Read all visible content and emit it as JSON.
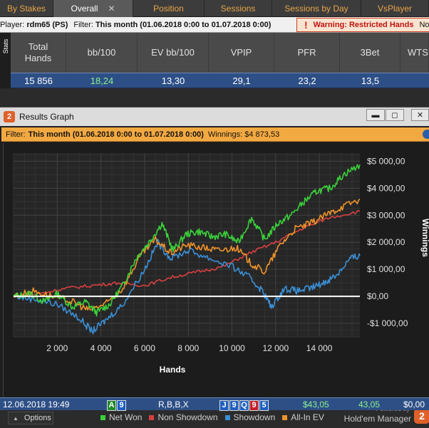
{
  "tabs": [
    {
      "label": "By Stakes",
      "active": false
    },
    {
      "label": "Overall",
      "active": true,
      "close": "✕"
    },
    {
      "label": "Position",
      "active": false
    },
    {
      "label": "Sessions",
      "active": false
    },
    {
      "label": "Sessions by Day",
      "active": false
    },
    {
      "label": "VsPlayer",
      "active": false
    }
  ],
  "filter_bar": {
    "player_label": "Player:",
    "player_value": "rdm65 (PS)",
    "filter_label": "Filter:",
    "filter_value": "This month (01.06.2018 0:00 to 01.07.2018 0:00)",
    "warning_icon": "!",
    "warning_text": "Warning: Restricted Hands",
    "warning_extra": "No C"
  },
  "stats_side_label": "Stats",
  "stats": {
    "headers": [
      "Total\nHands",
      "bb/100",
      "EV bb/100",
      "VPIP",
      "PFR",
      "3Bet",
      "WTSD"
    ],
    "values": [
      "15 856",
      "18,24",
      "13,30",
      "29,1",
      "23,2",
      "13,5",
      ""
    ]
  },
  "window": {
    "icon": "2",
    "title": "Results Graph",
    "buttons": [
      "▬",
      "◻",
      "✕"
    ]
  },
  "graph_filter": {
    "filter_label": "Filter:",
    "filter_value": "This month (01.06.2018 0:00 to 01.07.2018 0:00)",
    "winnings_label": "Winnings: $4 873,53"
  },
  "chart_data": {
    "type": "line",
    "xlabel": "Hands",
    "ylabel": "Winnings",
    "xlim": [
      0,
      15856
    ],
    "ylim": [
      -1500,
      5300
    ],
    "xticks": [
      2000,
      4000,
      6000,
      8000,
      10000,
      12000,
      14000
    ],
    "xtick_labels": [
      "2 000",
      "4 000",
      "6 000",
      "8 000",
      "10 000",
      "12 000",
      "14 000"
    ],
    "yticks": [
      -1000,
      0,
      1000,
      2000,
      3000,
      4000,
      5000
    ],
    "ytick_labels": [
      "-$1 000,00",
      "$0,00",
      "$1 000,00",
      "$2 000,00",
      "$3 000,00",
      "$4 000,00",
      "$5 000,00"
    ],
    "grid": true,
    "legend": "bottom",
    "series": [
      {
        "name": "Net Won",
        "color": "#3ad13a",
        "x": [
          0,
          800,
          1400,
          2000,
          2700,
          3300,
          3800,
          4400,
          5000,
          5600,
          6200,
          6800,
          7300,
          7900,
          8500,
          9100,
          9700,
          10300,
          10900,
          11500,
          12100,
          12700,
          13300,
          13900,
          14500,
          15100,
          15856
        ],
        "y": [
          0,
          100,
          -200,
          100,
          -400,
          -200,
          -600,
          -300,
          400,
          1400,
          2000,
          2700,
          1700,
          2300,
          2400,
          2200,
          2300,
          2000,
          2900,
          2100,
          2700,
          3000,
          3500,
          3900,
          4000,
          4500,
          4870
        ]
      },
      {
        "name": "Non Showdown",
        "color": "#d84040",
        "x": [
          0,
          1200,
          2400,
          3600,
          4800,
          6000,
          7200,
          8400,
          9600,
          10800,
          12000,
          13200,
          14400,
          15856
        ],
        "y": [
          0,
          100,
          300,
          400,
          500,
          400,
          700,
          900,
          1100,
          1600,
          2000,
          2500,
          2900,
          3150
        ]
      },
      {
        "name": "Showdown",
        "color": "#3a8fd6",
        "x": [
          0,
          1000,
          2000,
          3000,
          3600,
          4200,
          5000,
          6000,
          6600,
          7200,
          8000,
          9000,
          10000,
          10800,
          11400,
          11800,
          12400,
          13000,
          13600,
          14200,
          14800,
          15400,
          15856
        ],
        "y": [
          0,
          -100,
          -300,
          -800,
          -1300,
          -900,
          -300,
          1000,
          2000,
          1400,
          1700,
          1400,
          1100,
          700,
          200,
          -400,
          300,
          200,
          300,
          500,
          800,
          1400,
          1500
        ]
      },
      {
        "name": "All-In EV",
        "color": "#f0932a",
        "x": [
          0,
          900,
          1800,
          2700,
          3400,
          4200,
          5000,
          5800,
          6500,
          7200,
          7900,
          8700,
          9400,
          10200,
          10900,
          11500,
          12200,
          12900,
          13600,
          14300,
          15000,
          15856
        ],
        "y": [
          0,
          200,
          0,
          -200,
          -500,
          -300,
          300,
          1500,
          2100,
          1600,
          1900,
          1800,
          1700,
          1800,
          1200,
          900,
          1900,
          2500,
          2700,
          3000,
          3300,
          3600
        ]
      }
    ]
  },
  "options_label": "Options",
  "brand": {
    "powered_by": "Powered by",
    "name": "Hold'em Manager",
    "logo": "2"
  },
  "bottom_row": {
    "date": "12.06.2018 19:49",
    "hand1": [
      {
        "rank": "A",
        "suit": "c"
      },
      {
        "rank": "9",
        "suit": "d"
      }
    ],
    "actions": "R,B,B,X",
    "board": [
      {
        "rank": "J",
        "suit": "d"
      },
      {
        "rank": "9",
        "suit": "d"
      },
      {
        "rank": "Q",
        "suit": "d"
      },
      {
        "rank": "9",
        "suit": "h"
      },
      {
        "rank": "5",
        "suit": "d"
      }
    ],
    "won": "$43,05",
    "bb": "43,05",
    "extra": "$0,00"
  }
}
